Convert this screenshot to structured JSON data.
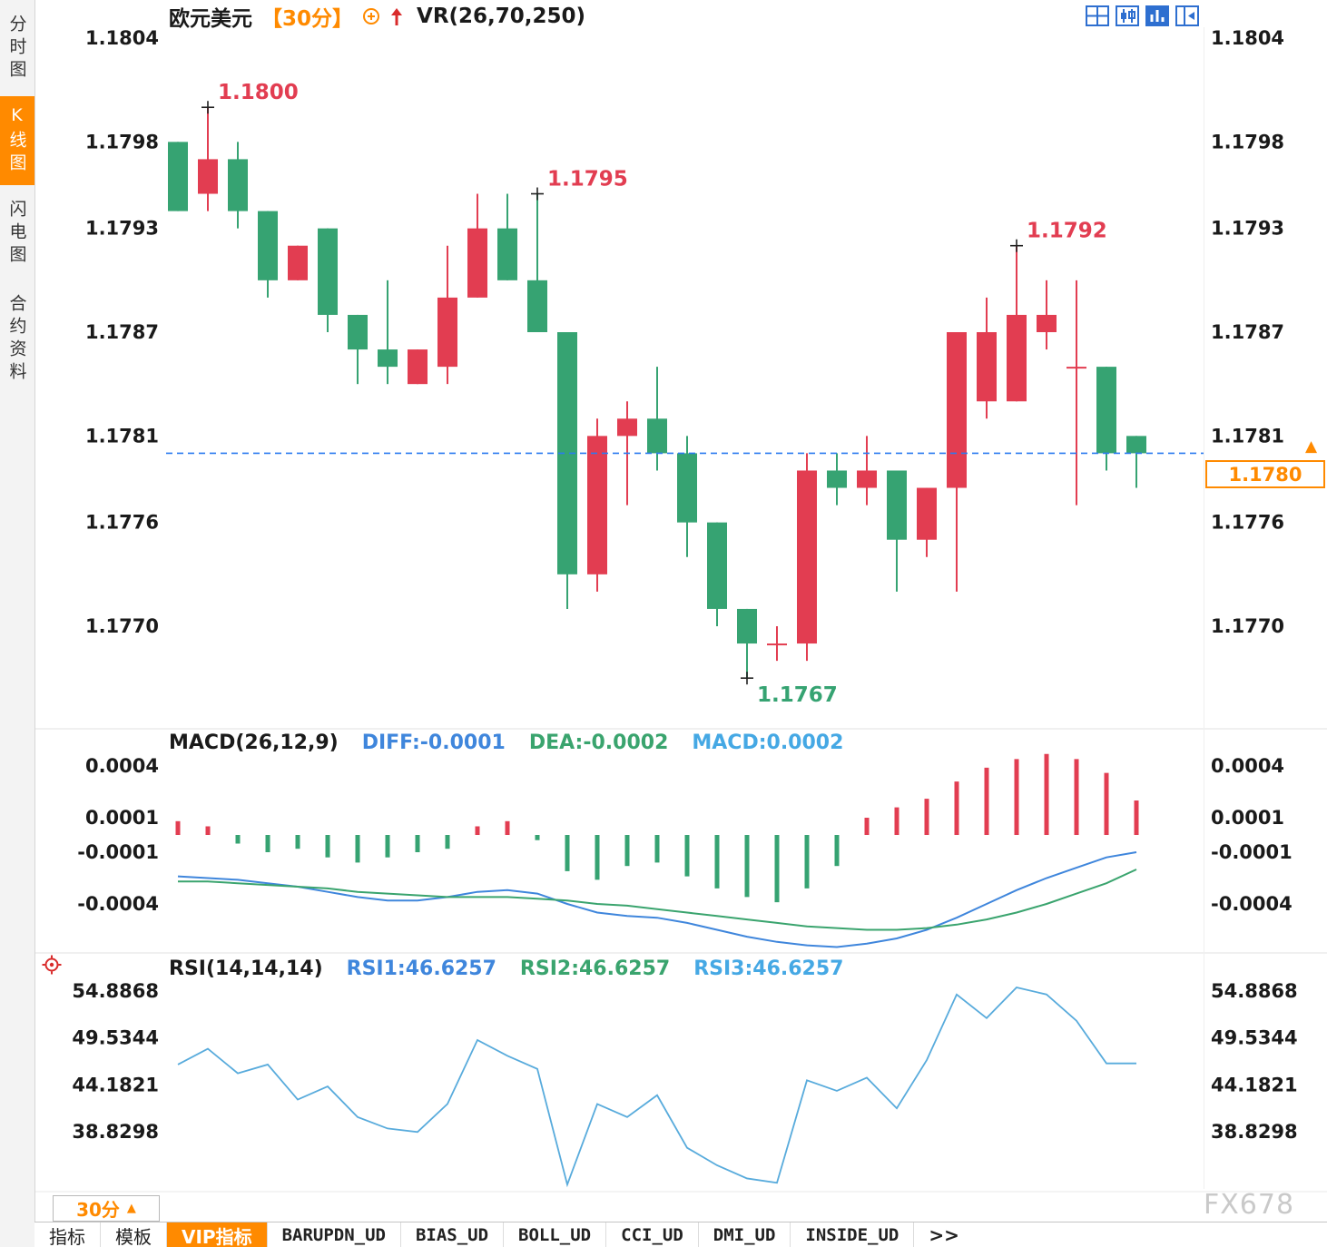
{
  "header": {
    "symbol": "欧元美元",
    "period": "【30分】",
    "indicator": "VR(26,70,250)"
  },
  "sidebar": {
    "tabs": [
      {
        "label": "分时图",
        "active": false
      },
      {
        "label": "K线图",
        "active": true
      },
      {
        "label": "闪电图",
        "active": false
      },
      {
        "label": "合约资料",
        "active": false
      }
    ]
  },
  "bottom": {
    "period_label": "30分",
    "tabs": [
      "指标",
      "模板",
      "VIP指标",
      "BARUPDN_UD",
      "BIAS_UD",
      "BOLL_UD",
      "CCI_UD",
      "DMI_UD",
      "INSIDE_UD",
      ">>"
    ],
    "active_tab": "VIP指标"
  },
  "watermark": "FX678",
  "icons": {
    "period_up_arrow": "▲",
    "price_up_arrow": "▲"
  },
  "colors": {
    "up_red": "#e23d51",
    "down_green": "#36a372",
    "accent_orange": "#ff8a00",
    "price_line_blue": "#2b7bf0",
    "diff_blue": "#3f86dc",
    "dea_green": "#3aa46e",
    "macd_value_blue": "#45a8e4",
    "rsi_line_blue": "#58abdc",
    "annotation_black": "#222222"
  },
  "chart_data": [
    {
      "type": "candlestick",
      "title": "欧元美元【30分】",
      "indicator": "VR(26,70,250)",
      "y_ticks": [
        1.1804,
        1.1798,
        1.1793,
        1.1787,
        1.1781,
        1.1776,
        1.177
      ],
      "ylim": [
        1.1766,
        1.1806
      ],
      "current_price": 1.178,
      "current_price_label": "1.1780",
      "candles": [
        [
          1.1798,
          1.1798,
          1.1794,
          1.1794
        ],
        [
          1.1795,
          1.18,
          1.1794,
          1.1797
        ],
        [
          1.1797,
          1.1798,
          1.1793,
          1.1794
        ],
        [
          1.1794,
          1.1794,
          1.1789,
          1.179
        ],
        [
          1.179,
          1.1792,
          1.179,
          1.1792
        ],
        [
          1.1793,
          1.1793,
          1.1787,
          1.1788
        ],
        [
          1.1788,
          1.1788,
          1.1784,
          1.1786
        ],
        [
          1.1786,
          1.179,
          1.1784,
          1.1785
        ],
        [
          1.1784,
          1.1786,
          1.1784,
          1.1786
        ],
        [
          1.1785,
          1.1792,
          1.1784,
          1.1789
        ],
        [
          1.1789,
          1.1795,
          1.1789,
          1.1793
        ],
        [
          1.1793,
          1.1795,
          1.179,
          1.179
        ],
        [
          1.179,
          1.1795,
          1.1787,
          1.1787
        ],
        [
          1.1787,
          1.1787,
          1.1771,
          1.1773
        ],
        [
          1.1773,
          1.1782,
          1.1772,
          1.1781
        ],
        [
          1.1781,
          1.1783,
          1.1777,
          1.1782
        ],
        [
          1.1782,
          1.1785,
          1.1779,
          1.178
        ],
        [
          1.178,
          1.1781,
          1.1774,
          1.1776
        ],
        [
          1.1776,
          1.1776,
          1.177,
          1.1771
        ],
        [
          1.1771,
          1.1771,
          1.1767,
          1.1769
        ],
        [
          1.1769,
          1.177,
          1.1768,
          1.1769
        ],
        [
          1.1769,
          1.178,
          1.1768,
          1.1779
        ],
        [
          1.1779,
          1.178,
          1.1777,
          1.1778
        ],
        [
          1.1778,
          1.1781,
          1.1777,
          1.1779
        ],
        [
          1.1779,
          1.1779,
          1.1772,
          1.1775
        ],
        [
          1.1775,
          1.1778,
          1.1774,
          1.1778
        ],
        [
          1.1778,
          1.1787,
          1.1772,
          1.1787
        ],
        [
          1.1783,
          1.1789,
          1.1782,
          1.1787
        ],
        [
          1.1783,
          1.1792,
          1.1783,
          1.1788
        ],
        [
          1.1787,
          1.179,
          1.1786,
          1.1788
        ],
        [
          1.1785,
          1.179,
          1.1777,
          1.1785
        ],
        [
          1.1785,
          1.1785,
          1.1779,
          1.178
        ],
        [
          1.1781,
          1.1781,
          1.1778,
          1.178
        ]
      ],
      "annotations": [
        {
          "candle": 1,
          "price": 1.18,
          "text": "1.1800",
          "side": "high"
        },
        {
          "candle": 12,
          "price": 1.1795,
          "text": "1.1795",
          "side": "high"
        },
        {
          "candle": 28,
          "price": 1.1792,
          "text": "1.1792",
          "side": "high"
        },
        {
          "candle": 19,
          "price": 1.1767,
          "text": "1.1767",
          "side": "low"
        }
      ]
    },
    {
      "type": "macd",
      "label": "MACD(26,12,9)",
      "legend": [
        "DIFF:-0.0001",
        "DEA:-0.0002",
        "MACD:0.0002"
      ],
      "y_ticks": [
        0.0004,
        0.0001,
        -0.0001,
        -0.0004
      ],
      "diff": [
        -0.00024,
        -0.00025,
        -0.00026,
        -0.00028,
        -0.0003,
        -0.00033,
        -0.00036,
        -0.00038,
        -0.00038,
        -0.00036,
        -0.00033,
        -0.00032,
        -0.00034,
        -0.0004,
        -0.00045,
        -0.00047,
        -0.00048,
        -0.00051,
        -0.00055,
        -0.00059,
        -0.00062,
        -0.00064,
        -0.00065,
        -0.00063,
        -0.0006,
        -0.00055,
        -0.00048,
        -0.0004,
        -0.00032,
        -0.00025,
        -0.00019,
        -0.00013,
        -0.0001
      ],
      "dea": [
        -0.00027,
        -0.00027,
        -0.00028,
        -0.00029,
        -0.0003,
        -0.00031,
        -0.00033,
        -0.00034,
        -0.00035,
        -0.00036,
        -0.00036,
        -0.00036,
        -0.00037,
        -0.00038,
        -0.0004,
        -0.00041,
        -0.00043,
        -0.00045,
        -0.00047,
        -0.00049,
        -0.00051,
        -0.00053,
        -0.00054,
        -0.00055,
        -0.00055,
        -0.00054,
        -0.00052,
        -0.00049,
        -0.00045,
        -0.0004,
        -0.00034,
        -0.00028,
        -0.0002
      ],
      "histogram": [
        8e-05,
        5e-05,
        -5e-05,
        -0.0001,
        -8e-05,
        -0.00013,
        -0.00016,
        -0.00013,
        -0.0001,
        -8e-05,
        5e-05,
        8e-05,
        -3e-05,
        -0.00021,
        -0.00026,
        -0.00018,
        -0.00016,
        -0.00024,
        -0.00031,
        -0.00036,
        -0.00039,
        -0.00031,
        -0.00018,
        0.0001,
        0.00016,
        0.00021,
        0.00031,
        0.00039,
        0.00044,
        0.00047,
        0.00044,
        0.00036,
        0.0002
      ]
    },
    {
      "type": "line",
      "label": "RSI(14,14,14)",
      "legend": [
        "RSI1:46.6257",
        "RSI2:46.6257",
        "RSI3:46.6257"
      ],
      "y_ticks": [
        54.8868,
        49.5344,
        44.1821,
        38.8298
      ],
      "values": [
        46.5,
        48.3,
        45.5,
        46.5,
        42.5,
        44.0,
        40.5,
        39.2,
        38.8,
        42.0,
        49.3,
        47.5,
        46.0,
        32.8,
        42.0,
        40.5,
        43.0,
        37.0,
        35.0,
        33.5,
        33.0,
        44.7,
        43.5,
        45.0,
        41.5,
        47.0,
        54.5,
        51.8,
        55.3,
        54.5,
        51.5,
        46.63,
        46.63
      ]
    }
  ]
}
